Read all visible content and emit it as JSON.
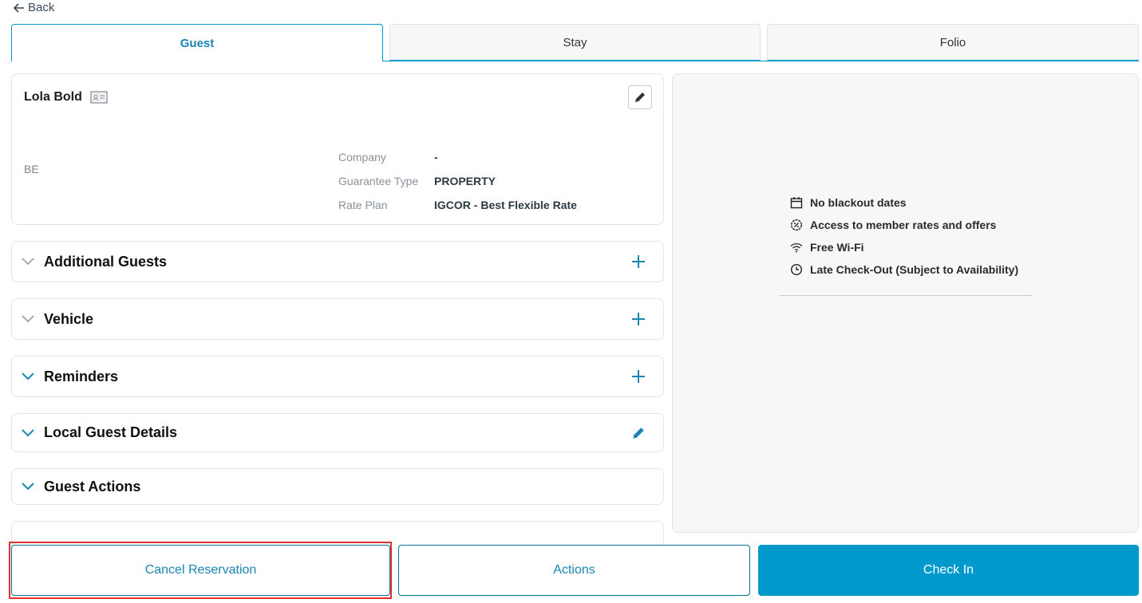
{
  "back_label": "Back",
  "tabs": [
    {
      "label": "Guest",
      "active": true
    },
    {
      "label": "Stay"
    },
    {
      "label": "Folio"
    }
  ],
  "guest": {
    "name": "Lola Bold",
    "country": "BE",
    "fields": [
      {
        "label": "Company",
        "value": "-"
      },
      {
        "label": "Guarantee Type",
        "value": "PROPERTY"
      },
      {
        "label": "Rate Plan",
        "value": "IGCOR - Best Flexible Rate"
      }
    ]
  },
  "sections": [
    {
      "title": "Additional Guests",
      "action": "plus-icon"
    },
    {
      "title": "Vehicle",
      "action": "plus-icon"
    },
    {
      "title": "Reminders",
      "action": "plus-icon"
    },
    {
      "title": "Local Guest Details",
      "action": "pencil-icon"
    },
    {
      "title": "Guest Actions"
    }
  ],
  "perks": [
    {
      "icon": "calendar-icon",
      "label": "No blackout dates"
    },
    {
      "icon": "percent-badge-icon",
      "label": "Access to member rates and offers"
    },
    {
      "icon": "wifi-icon",
      "label": "Free Wi-Fi"
    },
    {
      "icon": "clock-icon",
      "label": "Late Check-Out (Subject to Availability)"
    }
  ],
  "footer": {
    "cancel": "Cancel Reservation",
    "actions": "Actions",
    "check_in": "Check In"
  },
  "colors": {
    "accent": "#0099cc",
    "highlight": "#e53030"
  }
}
